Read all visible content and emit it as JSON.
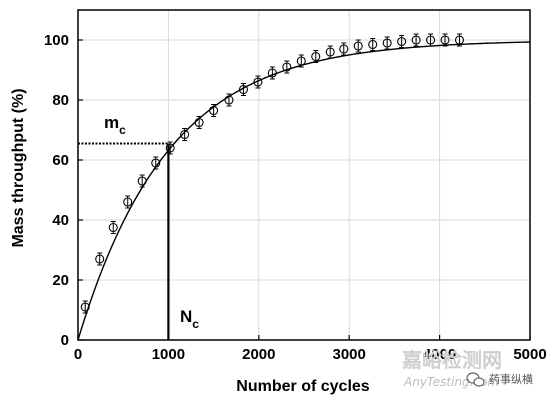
{
  "chart_data": {
    "type": "scatter",
    "title": "",
    "xlabel": "Number of cycles",
    "ylabel": "Mass throughput (%)",
    "xlim": [
      0,
      5000
    ],
    "ylim": [
      0,
      110
    ],
    "xticks": [
      0,
      1000,
      2000,
      3000,
      4000,
      5000
    ],
    "yticks": [
      0,
      20,
      40,
      60,
      80,
      100
    ],
    "grid": true,
    "series": [
      {
        "marker": "open-circle-with-errorbar",
        "x": [
          80,
          240,
          390,
          550,
          710,
          860,
          1020,
          1180,
          1340,
          1500,
          1670,
          1830,
          1990,
          2150,
          2310,
          2470,
          2630,
          2790,
          2940,
          3100,
          3260,
          3420,
          3580,
          3740,
          3900,
          4060,
          4220
        ],
        "y": [
          11,
          27,
          37.5,
          46,
          53,
          59,
          64,
          68.5,
          72.5,
          76.5,
          80,
          83.5,
          86,
          89,
          91,
          93,
          94.5,
          96,
          97,
          98,
          98.5,
          99,
          99.5,
          100,
          100,
          100,
          100
        ]
      },
      {
        "style": "solid-line-fit",
        "equation": "100*(1-exp(-x/1000))"
      }
    ],
    "annotations": [
      {
        "label_main": "m",
        "label_sub": "c",
        "kind": "dotted-horizontal",
        "y": 65.5,
        "x_from": 0,
        "x_to": 1000
      },
      {
        "label_main": "N",
        "label_sub": "c",
        "kind": "solid-vertical",
        "x": 1000,
        "y_from": 0,
        "y_to": 65.5
      }
    ]
  },
  "watermark": {
    "text_cn": "嘉峪检测网",
    "text_en": "AnyTesting.com",
    "badge": "药事纵横",
    "badge_icon": "wechat-icon"
  }
}
